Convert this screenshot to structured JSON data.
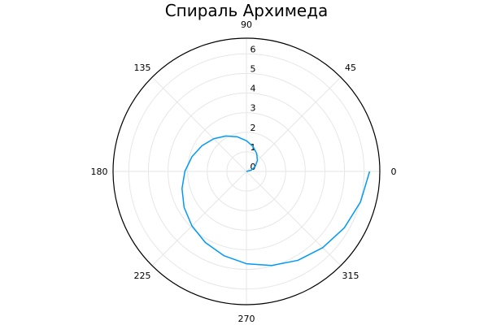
{
  "chart_data": {
    "type": "line",
    "projection": "polar",
    "title": "Спираль Архимеда",
    "angle_ticks": [
      "0",
      "45",
      "90",
      "135",
      "180",
      "225",
      "270",
      "315"
    ],
    "radial_ticks": [
      "0",
      "1",
      "2",
      "3",
      "4",
      "5",
      "6"
    ],
    "radial_range": [
      0,
      6.8
    ],
    "grid": true,
    "legend": "none",
    "series": [
      {
        "theta_deg": [
          0,
          15,
          30,
          45,
          60,
          75,
          90,
          105,
          120,
          135,
          150,
          165,
          180,
          195,
          210,
          225,
          240,
          255,
          270,
          285,
          300,
          315,
          330,
          345,
          360
        ],
        "r": [
          0,
          0.26,
          0.52,
          0.79,
          1.05,
          1.31,
          1.57,
          1.83,
          2.09,
          2.36,
          2.62,
          2.88,
          3.14,
          3.4,
          3.67,
          3.93,
          4.19,
          4.45,
          4.71,
          4.97,
          5.24,
          5.5,
          5.76,
          6.02,
          6.28
        ],
        "color": "#009AFA"
      }
    ]
  }
}
